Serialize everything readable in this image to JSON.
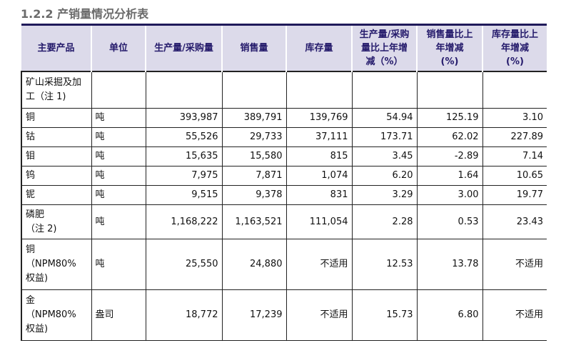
{
  "title": "1.2.2 产销量情况分析表",
  "colors": {
    "header_bg": "#dcdaea",
    "header_text": "#241a6b",
    "top_rule": "#1f1a5a",
    "title_text": "#6b6b6b"
  },
  "table": {
    "headers": [
      "主要产品",
      "单位",
      "生产量/采购量",
      "销售量",
      "库存量",
      "生产量/采购量比上年增减（%）",
      "销售量比上年增减(%)",
      "库存量比上年增减(%)"
    ],
    "section_row": {
      "label_lines": [
        "矿山采掘及加",
        "工（注 1)"
      ]
    },
    "rows": [
      {
        "product": "铜",
        "unit": "吨",
        "production": "393,987",
        "sales": "389,791",
        "inventory": "139,769",
        "production_yoy": "54.94",
        "sales_yoy": "125.19",
        "inventory_yoy": "3.10"
      },
      {
        "product": "钴",
        "unit": "吨",
        "production": "55,526",
        "sales": "29,733",
        "inventory": "37,111",
        "production_yoy": "173.71",
        "sales_yoy": "62.02",
        "inventory_yoy": "227.89"
      },
      {
        "product": "钼",
        "unit": "吨",
        "production": "15,635",
        "sales": "15,580",
        "inventory": "815",
        "production_yoy": "3.45",
        "sales_yoy": "-2.89",
        "inventory_yoy": "7.14"
      },
      {
        "product": "钨",
        "unit": "吨",
        "production": "7,975",
        "sales": "7,871",
        "inventory": "1,074",
        "production_yoy": "6.20",
        "sales_yoy": "1.64",
        "inventory_yoy": "10.65"
      },
      {
        "product": "铌",
        "unit": "吨",
        "production": "9,515",
        "sales": "9,378",
        "inventory": "831",
        "production_yoy": "3.29",
        "sales_yoy": "3.00",
        "inventory_yoy": "19.77"
      },
      {
        "product_lines": [
          "磷肥",
          "（注 2)"
        ],
        "unit": "吨",
        "production": "1,168,222",
        "sales": "1,163,521",
        "inventory": "111,054",
        "production_yoy": "2.28",
        "sales_yoy": "0.53",
        "inventory_yoy": "23.43"
      },
      {
        "product_lines": [
          "铜",
          "（NPM80%",
          "权益)"
        ],
        "unit": "吨",
        "production": "25,550",
        "sales": "24,880",
        "inventory": "不适用",
        "production_yoy": "12.53",
        "sales_yoy": "13.78",
        "inventory_yoy": "不适用"
      },
      {
        "product_lines": [
          "金",
          "（NPM80%",
          "权益)"
        ],
        "unit": "盎司",
        "production": "18,772",
        "sales": "17,239",
        "inventory": "不适用",
        "production_yoy": "15.73",
        "sales_yoy": "6.80",
        "inventory_yoy": "不适用"
      }
    ]
  },
  "header_lines": {
    "h5": [
      "生产量/采购",
      "量比上年增",
      "减（%）"
    ],
    "h6": [
      "销售量比上",
      "年增减",
      "(%)"
    ],
    "h7": [
      "库存量比上",
      "年增减",
      "(%)"
    ]
  }
}
